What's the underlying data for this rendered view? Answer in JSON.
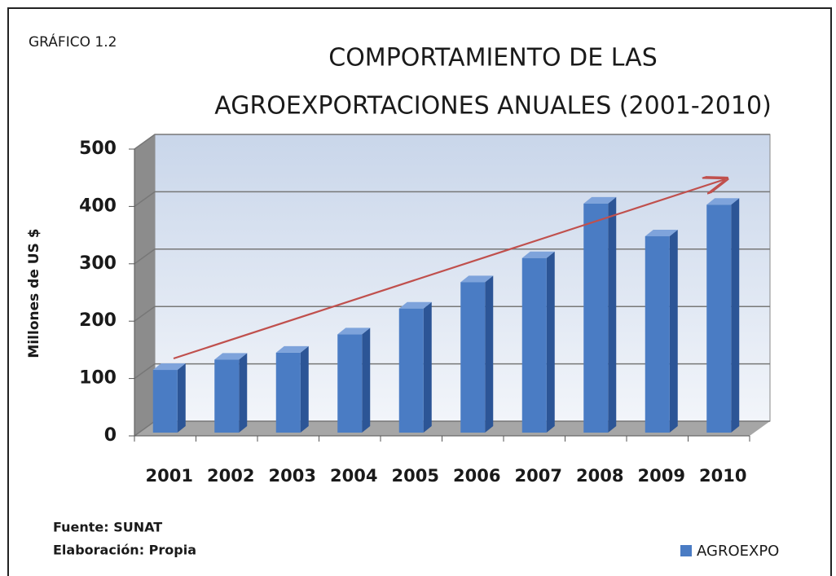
{
  "chart_data": {
    "type": "bar",
    "label": "GRÁFICO 1.2",
    "title": [
      "COMPORTAMIENTO DE LAS",
      "AGROEXPORTACIONES ANUALES (2001-2010)"
    ],
    "y_label": "Millones de  US $",
    "categories": [
      "2001",
      "2002",
      "2003",
      "2004",
      "2005",
      "2006",
      "2007",
      "2008",
      "2009",
      "2010"
    ],
    "series": [
      {
        "name": "AGROEXPO",
        "color": "#4a7cc4",
        "values": [
          115,
          133,
          145,
          177,
          222,
          268,
          310,
          405,
          348,
          403
        ]
      }
    ],
    "ylim": [
      0,
      500
    ],
    "yticks": [
      0,
      100,
      200,
      300,
      400,
      500
    ],
    "grid": true,
    "source": [
      "Fuente:  SUNAT",
      "Elaboración: Propia"
    ]
  }
}
